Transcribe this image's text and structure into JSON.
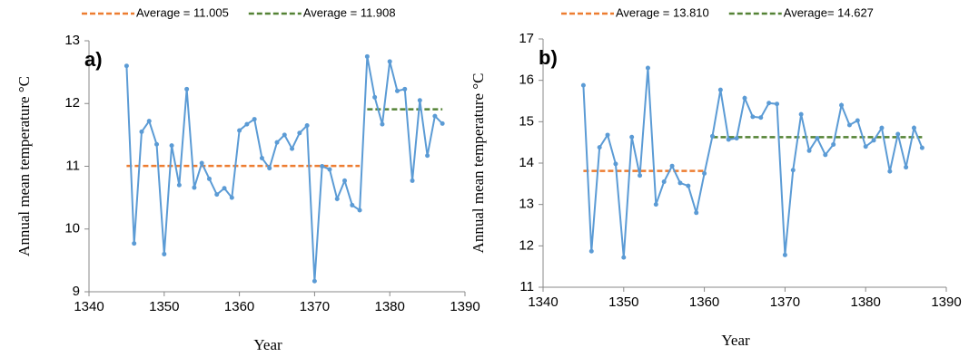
{
  "chart_data": [
    {
      "type": "line",
      "panel_label": "a)",
      "ylabel": "Annual  mean temperature  °C",
      "xlabel": "Year",
      "xlim": [
        1340,
        1390
      ],
      "xticks": [
        1340,
        1350,
        1360,
        1370,
        1380,
        1390
      ],
      "ylim": [
        9,
        13
      ],
      "yticks": [
        9,
        10,
        11,
        12,
        13
      ],
      "color": "#5b9bd5",
      "x": [
        1345,
        1346,
        1347,
        1348,
        1349,
        1350,
        1351,
        1352,
        1353,
        1354,
        1355,
        1356,
        1357,
        1358,
        1359,
        1360,
        1361,
        1362,
        1363,
        1364,
        1365,
        1366,
        1367,
        1368,
        1369,
        1370,
        1371,
        1372,
        1373,
        1374,
        1375,
        1376,
        1377,
        1378,
        1379,
        1380,
        1381,
        1382,
        1383,
        1384,
        1385,
        1386,
        1387
      ],
      "values": [
        12.6,
        9.77,
        11.55,
        11.72,
        11.35,
        9.6,
        11.33,
        10.7,
        12.23,
        10.66,
        11.05,
        10.8,
        10.55,
        10.65,
        10.5,
        11.57,
        11.67,
        11.75,
        11.13,
        10.97,
        11.38,
        11.5,
        11.28,
        11.53,
        11.65,
        9.17,
        11.0,
        10.95,
        10.48,
        10.77,
        10.38,
        10.3,
        12.75,
        12.1,
        11.67,
        12.67,
        12.2,
        12.23,
        10.77,
        12.05,
        11.17,
        11.8,
        11.68
      ],
      "averages": [
        {
          "label": "Average = 11.005",
          "value": 11.005,
          "color": "#ed7d31",
          "x": [
            1345,
            1376
          ]
        },
        {
          "label": "Average = 11.908",
          "value": 11.908,
          "color": "#548235",
          "x": [
            1377,
            1387
          ]
        }
      ]
    },
    {
      "type": "line",
      "panel_label": "b)",
      "ylabel": "Annual  mean temperature  °C",
      "xlabel": "Year",
      "xlim": [
        1340,
        1390
      ],
      "xticks": [
        1340,
        1350,
        1360,
        1370,
        1380,
        1390
      ],
      "ylim": [
        11,
        17
      ],
      "yticks": [
        11,
        12,
        13,
        14,
        15,
        16,
        17
      ],
      "color": "#5b9bd5",
      "x": [
        1345,
        1346,
        1347,
        1348,
        1349,
        1350,
        1351,
        1352,
        1353,
        1354,
        1355,
        1356,
        1357,
        1358,
        1359,
        1360,
        1361,
        1362,
        1363,
        1364,
        1365,
        1366,
        1367,
        1368,
        1369,
        1370,
        1371,
        1372,
        1373,
        1374,
        1375,
        1376,
        1377,
        1378,
        1379,
        1380,
        1381,
        1382,
        1383,
        1384,
        1385,
        1386,
        1387
      ],
      "values": [
        15.88,
        11.87,
        14.38,
        14.68,
        13.98,
        11.72,
        14.63,
        13.7,
        16.3,
        13.0,
        13.55,
        13.93,
        13.52,
        13.45,
        12.8,
        13.75,
        14.65,
        15.77,
        14.57,
        14.6,
        15.57,
        15.12,
        15.1,
        15.45,
        15.43,
        11.78,
        13.83,
        15.18,
        14.3,
        14.6,
        14.2,
        14.45,
        15.4,
        14.92,
        15.03,
        14.4,
        14.55,
        14.85,
        13.8,
        14.7,
        13.9,
        14.85,
        14.37
      ],
      "averages": [
        {
          "label": "Average = 13.810",
          "value": 13.81,
          "color": "#ed7d31",
          "x": [
            1345,
            1360
          ]
        },
        {
          "label": "Average= 14.627",
          "value": 14.627,
          "color": "#548235",
          "x": [
            1361,
            1387
          ]
        }
      ]
    }
  ]
}
